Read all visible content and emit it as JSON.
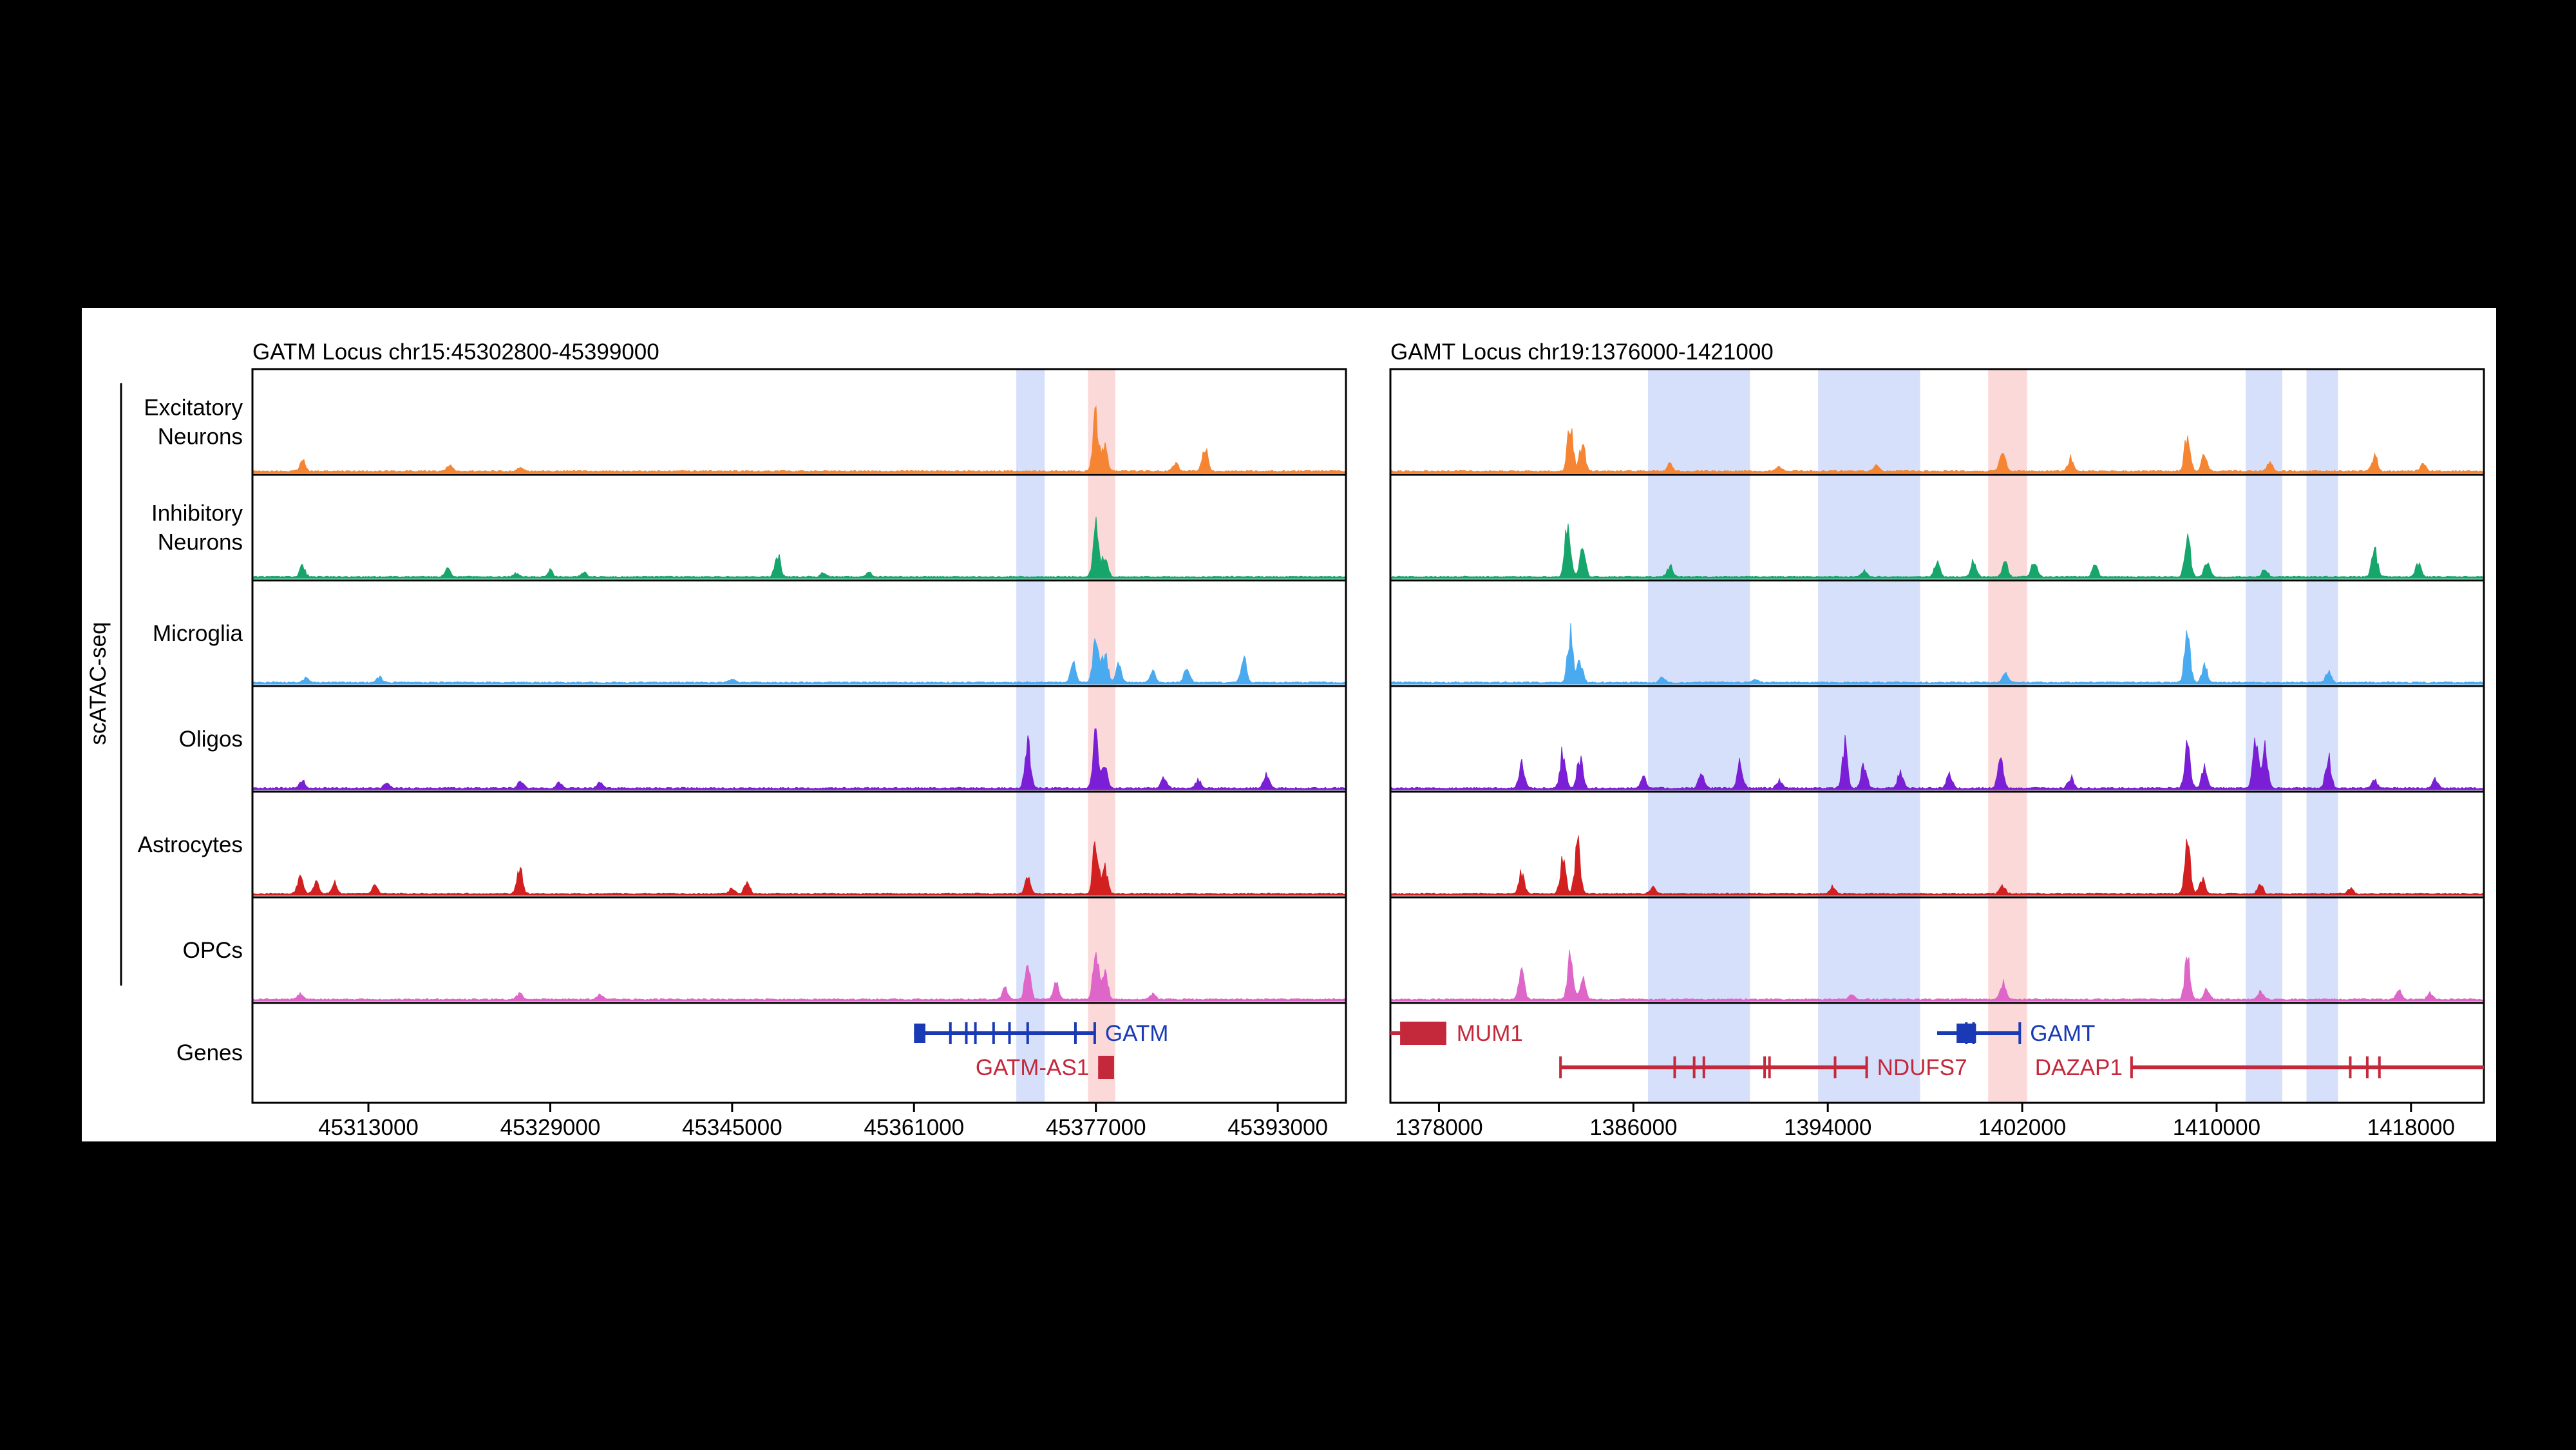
{
  "figure": {
    "side_label": "scATAC-seq",
    "genes_label": "Genes",
    "tracks": [
      {
        "key": "excitatory",
        "label_lines": [
          "Excitatory",
          "Neurons"
        ],
        "color": "#f58532"
      },
      {
        "key": "inhibitory",
        "label_lines": [
          "Inhibitory",
          "Neurons"
        ],
        "color": "#16a56b"
      },
      {
        "key": "microglia",
        "label_lines": [
          "Microglia"
        ],
        "color": "#4aaaf0"
      },
      {
        "key": "oligos",
        "label_lines": [
          "Oligos"
        ],
        "color": "#7a1fd6"
      },
      {
        "key": "astrocytes",
        "label_lines": [
          "Astrocytes"
        ],
        "color": "#d21f1f"
      },
      {
        "key": "opcs",
        "label_lines": [
          "OPCs"
        ],
        "color": "#de66c8"
      }
    ]
  },
  "chart_data": [
    {
      "type": "area",
      "title": "GATM Locus chr15:45302800-45399000",
      "xlim": [
        45302800,
        45399000
      ],
      "xticks": [
        45313000,
        45329000,
        45345000,
        45361000,
        45377000,
        45393000
      ],
      "highlights": [
        {
          "start": 45370000,
          "end": 45372500,
          "color": "#d7e0fb"
        },
        {
          "start": 45376300,
          "end": 45378700,
          "color": "#fbd9d9"
        }
      ],
      "peaks": {
        "excitatory": [
          [
            45307200,
            0.2
          ],
          [
            45320200,
            0.12
          ],
          [
            45326400,
            0.06
          ],
          [
            45377000,
            1.0
          ],
          [
            45377800,
            0.45
          ],
          [
            45384000,
            0.15
          ],
          [
            45386600,
            0.5
          ]
        ],
        "inhibitory": [
          [
            45307200,
            0.18
          ],
          [
            45320000,
            0.15
          ],
          [
            45326000,
            0.06
          ],
          [
            45329000,
            0.12
          ],
          [
            45332000,
            0.08
          ],
          [
            45349000,
            0.42
          ],
          [
            45353000,
            0.06
          ],
          [
            45357000,
            0.08
          ],
          [
            45377000,
            0.95
          ],
          [
            45377800,
            0.4
          ]
        ],
        "microglia": [
          [
            45307500,
            0.08
          ],
          [
            45314000,
            0.1
          ],
          [
            45345000,
            0.06
          ],
          [
            45375000,
            0.35
          ],
          [
            45377000,
            1.0
          ],
          [
            45377800,
            0.55
          ],
          [
            45379000,
            0.3
          ],
          [
            45382000,
            0.2
          ],
          [
            45385000,
            0.3
          ],
          [
            45390000,
            0.45
          ]
        ],
        "oligos": [
          [
            45307200,
            0.12
          ],
          [
            45314600,
            0.1
          ],
          [
            45326400,
            0.15
          ],
          [
            45329800,
            0.1
          ],
          [
            45333400,
            0.12
          ],
          [
            45371000,
            0.85
          ],
          [
            45377000,
            1.0
          ],
          [
            45377800,
            0.4
          ],
          [
            45383000,
            0.2
          ],
          [
            45386000,
            0.15
          ],
          [
            45392000,
            0.25
          ]
        ],
        "astrocytes": [
          [
            45307000,
            0.3
          ],
          [
            45308400,
            0.22
          ],
          [
            45310000,
            0.2
          ],
          [
            45313600,
            0.15
          ],
          [
            45326300,
            0.48
          ],
          [
            45345000,
            0.1
          ],
          [
            45346300,
            0.2
          ],
          [
            45371000,
            0.28
          ],
          [
            45377000,
            1.0
          ],
          [
            45377800,
            0.5
          ]
        ],
        "opcs": [
          [
            45307000,
            0.1
          ],
          [
            45326300,
            0.12
          ],
          [
            45333400,
            0.1
          ],
          [
            45369000,
            0.2
          ],
          [
            45371000,
            0.65
          ],
          [
            45373500,
            0.3
          ],
          [
            45377000,
            1.0
          ],
          [
            45377800,
            0.55
          ],
          [
            45382000,
            0.1
          ]
        ]
      },
      "genes": [
        {
          "name": "GATM",
          "start": 45361000,
          "end": 45376900,
          "strand": "-",
          "row": 0,
          "color": "#1a3ab5",
          "label_side": "right",
          "exons": [
            45361000,
            45364200,
            45365600,
            45366400,
            45368000,
            45369400,
            45371000,
            45375200,
            45376900
          ],
          "first_exon_width": 1000
        },
        {
          "name": "GATM-AS1",
          "start": 45377200,
          "end": 45378600,
          "strand": "+",
          "row": 1,
          "color": "#c4283b",
          "label_side": "left",
          "exons": [],
          "block": true
        }
      ]
    },
    {
      "type": "area",
      "title": "GAMT Locus chr19:1376000-1421000",
      "xlim": [
        1376000,
        1421000
      ],
      "xticks": [
        1378000,
        1386000,
        1394000,
        1402000,
        1410000,
        1418000
      ],
      "highlights": [
        {
          "start": 1386600,
          "end": 1390800,
          "color": "#d7e0fb"
        },
        {
          "start": 1393600,
          "end": 1397800,
          "color": "#d7e0fb"
        },
        {
          "start": 1400600,
          "end": 1402200,
          "color": "#fbd9d9"
        },
        {
          "start": 1411200,
          "end": 1412700,
          "color": "#d7e0fb"
        },
        {
          "start": 1413700,
          "end": 1415000,
          "color": "#d7e0fb"
        }
      ],
      "peaks": {
        "excitatory": [
          [
            1383400,
            0.85
          ],
          [
            1383900,
            0.5
          ],
          [
            1387500,
            0.12
          ],
          [
            1392000,
            0.08
          ],
          [
            1396000,
            0.1
          ],
          [
            1401200,
            0.4
          ],
          [
            1404000,
            0.25
          ],
          [
            1408800,
            0.7
          ],
          [
            1409500,
            0.3
          ],
          [
            1412200,
            0.15
          ],
          [
            1416500,
            0.3
          ],
          [
            1418500,
            0.15
          ]
        ],
        "inhibitory": [
          [
            1383300,
            1.0
          ],
          [
            1383900,
            0.6
          ],
          [
            1387500,
            0.2
          ],
          [
            1395500,
            0.12
          ],
          [
            1398500,
            0.25
          ],
          [
            1400000,
            0.3
          ],
          [
            1401300,
            0.25
          ],
          [
            1402500,
            0.3
          ],
          [
            1405000,
            0.2
          ],
          [
            1408800,
            0.85
          ],
          [
            1409600,
            0.3
          ],
          [
            1412000,
            0.15
          ],
          [
            1416500,
            0.5
          ],
          [
            1418300,
            0.25
          ]
        ],
        "microglia": [
          [
            1383400,
            0.9
          ],
          [
            1383800,
            0.4
          ],
          [
            1387200,
            0.1
          ],
          [
            1391000,
            0.06
          ],
          [
            1401300,
            0.2
          ],
          [
            1408800,
            0.9
          ],
          [
            1409500,
            0.3
          ],
          [
            1414600,
            0.2
          ]
        ],
        "oligos": [
          [
            1381400,
            0.45
          ],
          [
            1383100,
            0.7
          ],
          [
            1383800,
            0.55
          ],
          [
            1386400,
            0.2
          ],
          [
            1388800,
            0.3
          ],
          [
            1390400,
            0.45
          ],
          [
            1392000,
            0.15
          ],
          [
            1394700,
            0.8
          ],
          [
            1395500,
            0.45
          ],
          [
            1397000,
            0.3
          ],
          [
            1399000,
            0.25
          ],
          [
            1401100,
            0.55
          ],
          [
            1404000,
            0.2
          ],
          [
            1408800,
            0.85
          ],
          [
            1409500,
            0.35
          ],
          [
            1411600,
            1.0
          ],
          [
            1412000,
            0.7
          ],
          [
            1414600,
            0.55
          ],
          [
            1416500,
            0.15
          ],
          [
            1419000,
            0.15
          ]
        ],
        "astrocytes": [
          [
            1381400,
            0.4
          ],
          [
            1383100,
            0.65
          ],
          [
            1383700,
            0.9
          ],
          [
            1386800,
            0.12
          ],
          [
            1394200,
            0.12
          ],
          [
            1401200,
            0.15
          ],
          [
            1408800,
            0.9
          ],
          [
            1409400,
            0.3
          ],
          [
            1411800,
            0.15
          ],
          [
            1415500,
            0.1
          ]
        ],
        "opcs": [
          [
            1381400,
            0.5
          ],
          [
            1383400,
            0.8
          ],
          [
            1383900,
            0.4
          ],
          [
            1395000,
            0.1
          ],
          [
            1401200,
            0.3
          ],
          [
            1408800,
            0.75
          ],
          [
            1409600,
            0.2
          ],
          [
            1411800,
            0.15
          ],
          [
            1417500,
            0.15
          ],
          [
            1418800,
            0.12
          ]
        ]
      },
      "genes": [
        {
          "name": "MUM1",
          "start": 1376000,
          "end": 1378300,
          "strand": "+",
          "row": 0,
          "color": "#c4283b",
          "label_side": "right",
          "exons": [],
          "block": true,
          "block_start": 1376400
        },
        {
          "name": "NDUFS7",
          "start": 1383000,
          "end": 1395600,
          "strand": "+",
          "row": 1,
          "color": "#c4283b",
          "label_side": "right",
          "exons": [
            1383000,
            1387700,
            1388500,
            1388900,
            1391400,
            1391600,
            1394300,
            1395600
          ]
        },
        {
          "name": "GAMT",
          "start": 1398500,
          "end": 1401900,
          "strand": "-",
          "row": 0,
          "color": "#1a3ab5",
          "label_side": "right",
          "exons": [
            1399300,
            1399700,
            1400000,
            1401900
          ],
          "first_exon_width": 800
        },
        {
          "name": "DAZAP1",
          "start": 1406500,
          "end": 1421000,
          "strand": "+",
          "row": 1,
          "color": "#c4283b",
          "label_side": "left",
          "exons": [
            1406500,
            1415500,
            1416200,
            1416700
          ]
        }
      ]
    }
  ]
}
